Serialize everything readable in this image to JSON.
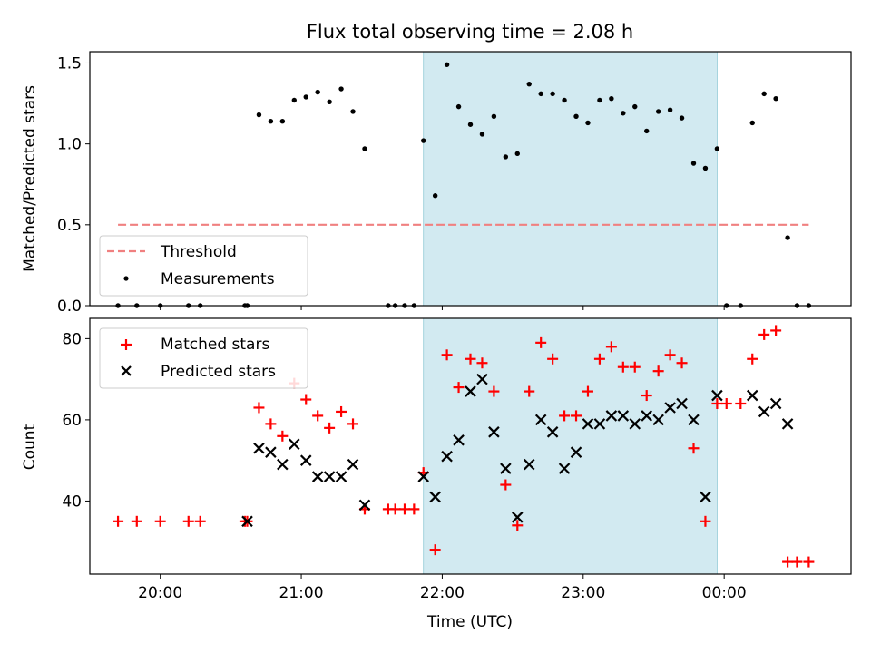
{
  "chart_data": [
    {
      "type": "scatter",
      "title": "Flux total observing time = 2.08 h",
      "xlabel": "",
      "ylabel": "Matched/Predicted stars",
      "ylim": [
        0,
        1.57
      ],
      "yticks": [
        "0.0",
        "0.5",
        "1.0",
        "1.5"
      ],
      "ytick_values": [
        0,
        0.5,
        1.0,
        1.5
      ],
      "xlim_minutes": [
        1170,
        1494
      ],
      "highlight_span": {
        "start": "21:52",
        "end": "23:57",
        "color": "#add8e6"
      },
      "threshold": {
        "name": "Threshold",
        "value": 0.5,
        "x_start": "19:42",
        "x_end": "00:36",
        "color": "#f08080"
      },
      "legend": {
        "position": "lower-left",
        "entries": [
          "Threshold",
          "Measurements"
        ]
      },
      "series": [
        {
          "name": "Measurements",
          "color": "#000000",
          "marker": "dot",
          "points": [
            {
              "x": "19:42",
              "y": 0
            },
            {
              "x": "19:50",
              "y": 0
            },
            {
              "x": "20:00",
              "y": 0
            },
            {
              "x": "20:12",
              "y": 0
            },
            {
              "x": "20:17",
              "y": 0
            },
            {
              "x": "20:36",
              "y": 0
            },
            {
              "x": "20:37",
              "y": 0
            },
            {
              "x": "20:42",
              "y": 1.18
            },
            {
              "x": "20:47",
              "y": 1.14
            },
            {
              "x": "20:52",
              "y": 1.14
            },
            {
              "x": "20:57",
              "y": 1.27
            },
            {
              "x": "21:02",
              "y": 1.29
            },
            {
              "x": "21:07",
              "y": 1.32
            },
            {
              "x": "21:12",
              "y": 1.26
            },
            {
              "x": "21:17",
              "y": 1.34
            },
            {
              "x": "21:22",
              "y": 1.2
            },
            {
              "x": "21:27",
              "y": 0.97
            },
            {
              "x": "21:37",
              "y": 0
            },
            {
              "x": "21:40",
              "y": 0
            },
            {
              "x": "21:44",
              "y": 0
            },
            {
              "x": "21:48",
              "y": 0
            },
            {
              "x": "21:52",
              "y": 1.02
            },
            {
              "x": "21:57",
              "y": 0.68
            },
            {
              "x": "22:02",
              "y": 1.49
            },
            {
              "x": "22:07",
              "y": 1.23
            },
            {
              "x": "22:12",
              "y": 1.12
            },
            {
              "x": "22:17",
              "y": 1.06
            },
            {
              "x": "22:22",
              "y": 1.17
            },
            {
              "x": "22:27",
              "y": 0.92
            },
            {
              "x": "22:32",
              "y": 0.94
            },
            {
              "x": "22:37",
              "y": 1.37
            },
            {
              "x": "22:42",
              "y": 1.31
            },
            {
              "x": "22:47",
              "y": 1.31
            },
            {
              "x": "22:52",
              "y": 1.27
            },
            {
              "x": "22:57",
              "y": 1.17
            },
            {
              "x": "23:02",
              "y": 1.13
            },
            {
              "x": "23:07",
              "y": 1.27
            },
            {
              "x": "23:12",
              "y": 1.28
            },
            {
              "x": "23:17",
              "y": 1.19
            },
            {
              "x": "23:22",
              "y": 1.23
            },
            {
              "x": "23:27",
              "y": 1.08
            },
            {
              "x": "23:32",
              "y": 1.2
            },
            {
              "x": "23:37",
              "y": 1.21
            },
            {
              "x": "23:42",
              "y": 1.16
            },
            {
              "x": "23:47",
              "y": 0.88
            },
            {
              "x": "23:52",
              "y": 0.85
            },
            {
              "x": "23:57",
              "y": 0.97
            },
            {
              "x": "00:01",
              "y": 0
            },
            {
              "x": "00:07",
              "y": 0
            },
            {
              "x": "00:12",
              "y": 1.13
            },
            {
              "x": "00:17",
              "y": 1.31
            },
            {
              "x": "00:22",
              "y": 1.28
            },
            {
              "x": "00:27",
              "y": 0.42
            },
            {
              "x": "00:31",
              "y": 0
            },
            {
              "x": "00:36",
              "y": 0
            }
          ]
        }
      ]
    },
    {
      "type": "scatter",
      "xlabel": "Time (UTC)",
      "ylabel": "Count",
      "ylim": [
        22,
        85
      ],
      "yticks": [
        "40",
        "60",
        "80"
      ],
      "ytick_values": [
        40,
        60,
        80
      ],
      "xticks": [
        "20:00",
        "21:00",
        "22:00",
        "23:00",
        "00:00"
      ],
      "xlim_minutes": [
        1170,
        1494
      ],
      "highlight_span": {
        "start": "21:52",
        "end": "23:57",
        "color": "#add8e6"
      },
      "legend": {
        "position": "upper-left",
        "entries": [
          "Matched stars",
          "Predicted stars"
        ]
      },
      "series": [
        {
          "name": "Matched stars",
          "color": "#ff0000",
          "marker": "plus",
          "points": [
            {
              "x": "19:42",
              "y": 35
            },
            {
              "x": "19:50",
              "y": 35
            },
            {
              "x": "20:00",
              "y": 35
            },
            {
              "x": "20:12",
              "y": 35
            },
            {
              "x": "20:17",
              "y": 35
            },
            {
              "x": "20:36",
              "y": 35
            },
            {
              "x": "20:37",
              "y": 35
            },
            {
              "x": "20:42",
              "y": 63
            },
            {
              "x": "20:47",
              "y": 59
            },
            {
              "x": "20:52",
              "y": 56
            },
            {
              "x": "20:57",
              "y": 69
            },
            {
              "x": "21:02",
              "y": 65
            },
            {
              "x": "21:07",
              "y": 61
            },
            {
              "x": "21:12",
              "y": 58
            },
            {
              "x": "21:17",
              "y": 62
            },
            {
              "x": "21:22",
              "y": 59
            },
            {
              "x": "21:27",
              "y": 38
            },
            {
              "x": "21:37",
              "y": 38
            },
            {
              "x": "21:40",
              "y": 38
            },
            {
              "x": "21:44",
              "y": 38
            },
            {
              "x": "21:48",
              "y": 38
            },
            {
              "x": "21:52",
              "y": 47
            },
            {
              "x": "21:57",
              "y": 28
            },
            {
              "x": "22:02",
              "y": 76
            },
            {
              "x": "22:07",
              "y": 68
            },
            {
              "x": "22:12",
              "y": 75
            },
            {
              "x": "22:17",
              "y": 74
            },
            {
              "x": "22:22",
              "y": 67
            },
            {
              "x": "22:27",
              "y": 44
            },
            {
              "x": "22:32",
              "y": 34
            },
            {
              "x": "22:37",
              "y": 67
            },
            {
              "x": "22:42",
              "y": 79
            },
            {
              "x": "22:47",
              "y": 75
            },
            {
              "x": "22:52",
              "y": 61
            },
            {
              "x": "22:57",
              "y": 61
            },
            {
              "x": "23:02",
              "y": 67
            },
            {
              "x": "23:07",
              "y": 75
            },
            {
              "x": "23:12",
              "y": 78
            },
            {
              "x": "23:17",
              "y": 73
            },
            {
              "x": "23:22",
              "y": 73
            },
            {
              "x": "23:27",
              "y": 66
            },
            {
              "x": "23:32",
              "y": 72
            },
            {
              "x": "23:37",
              "y": 76
            },
            {
              "x": "23:42",
              "y": 74
            },
            {
              "x": "23:47",
              "y": 53
            },
            {
              "x": "23:52",
              "y": 35
            },
            {
              "x": "23:57",
              "y": 64
            },
            {
              "x": "00:01",
              "y": 64
            },
            {
              "x": "00:07",
              "y": 64
            },
            {
              "x": "00:12",
              "y": 75
            },
            {
              "x": "00:17",
              "y": 81
            },
            {
              "x": "00:22",
              "y": 82
            },
            {
              "x": "00:27",
              "y": 25
            },
            {
              "x": "00:31",
              "y": 25
            },
            {
              "x": "00:36",
              "y": 25
            }
          ]
        },
        {
          "name": "Predicted stars",
          "color": "#000000",
          "marker": "x",
          "points": [
            {
              "x": "20:37",
              "y": 35
            },
            {
              "x": "20:42",
              "y": 53
            },
            {
              "x": "20:47",
              "y": 52
            },
            {
              "x": "20:52",
              "y": 49
            },
            {
              "x": "20:57",
              "y": 54
            },
            {
              "x": "21:02",
              "y": 50
            },
            {
              "x": "21:07",
              "y": 46
            },
            {
              "x": "21:12",
              "y": 46
            },
            {
              "x": "21:17",
              "y": 46
            },
            {
              "x": "21:22",
              "y": 49
            },
            {
              "x": "21:27",
              "y": 39
            },
            {
              "x": "21:52",
              "y": 46
            },
            {
              "x": "21:57",
              "y": 41
            },
            {
              "x": "22:02",
              "y": 51
            },
            {
              "x": "22:07",
              "y": 55
            },
            {
              "x": "22:12",
              "y": 67
            },
            {
              "x": "22:17",
              "y": 70
            },
            {
              "x": "22:22",
              "y": 57
            },
            {
              "x": "22:27",
              "y": 48
            },
            {
              "x": "22:32",
              "y": 36
            },
            {
              "x": "22:37",
              "y": 49
            },
            {
              "x": "22:42",
              "y": 60
            },
            {
              "x": "22:47",
              "y": 57
            },
            {
              "x": "22:52",
              "y": 48
            },
            {
              "x": "22:57",
              "y": 52
            },
            {
              "x": "23:02",
              "y": 59
            },
            {
              "x": "23:07",
              "y": 59
            },
            {
              "x": "23:12",
              "y": 61
            },
            {
              "x": "23:17",
              "y": 61
            },
            {
              "x": "23:22",
              "y": 59
            },
            {
              "x": "23:27",
              "y": 61
            },
            {
              "x": "23:32",
              "y": 60
            },
            {
              "x": "23:37",
              "y": 63
            },
            {
              "x": "23:42",
              "y": 64
            },
            {
              "x": "23:47",
              "y": 60
            },
            {
              "x": "23:52",
              "y": 41
            },
            {
              "x": "23:57",
              "y": 66
            },
            {
              "x": "00:12",
              "y": 66
            },
            {
              "x": "00:17",
              "y": 62
            },
            {
              "x": "00:22",
              "y": 64
            },
            {
              "x": "00:27",
              "y": 59
            }
          ]
        }
      ]
    }
  ]
}
